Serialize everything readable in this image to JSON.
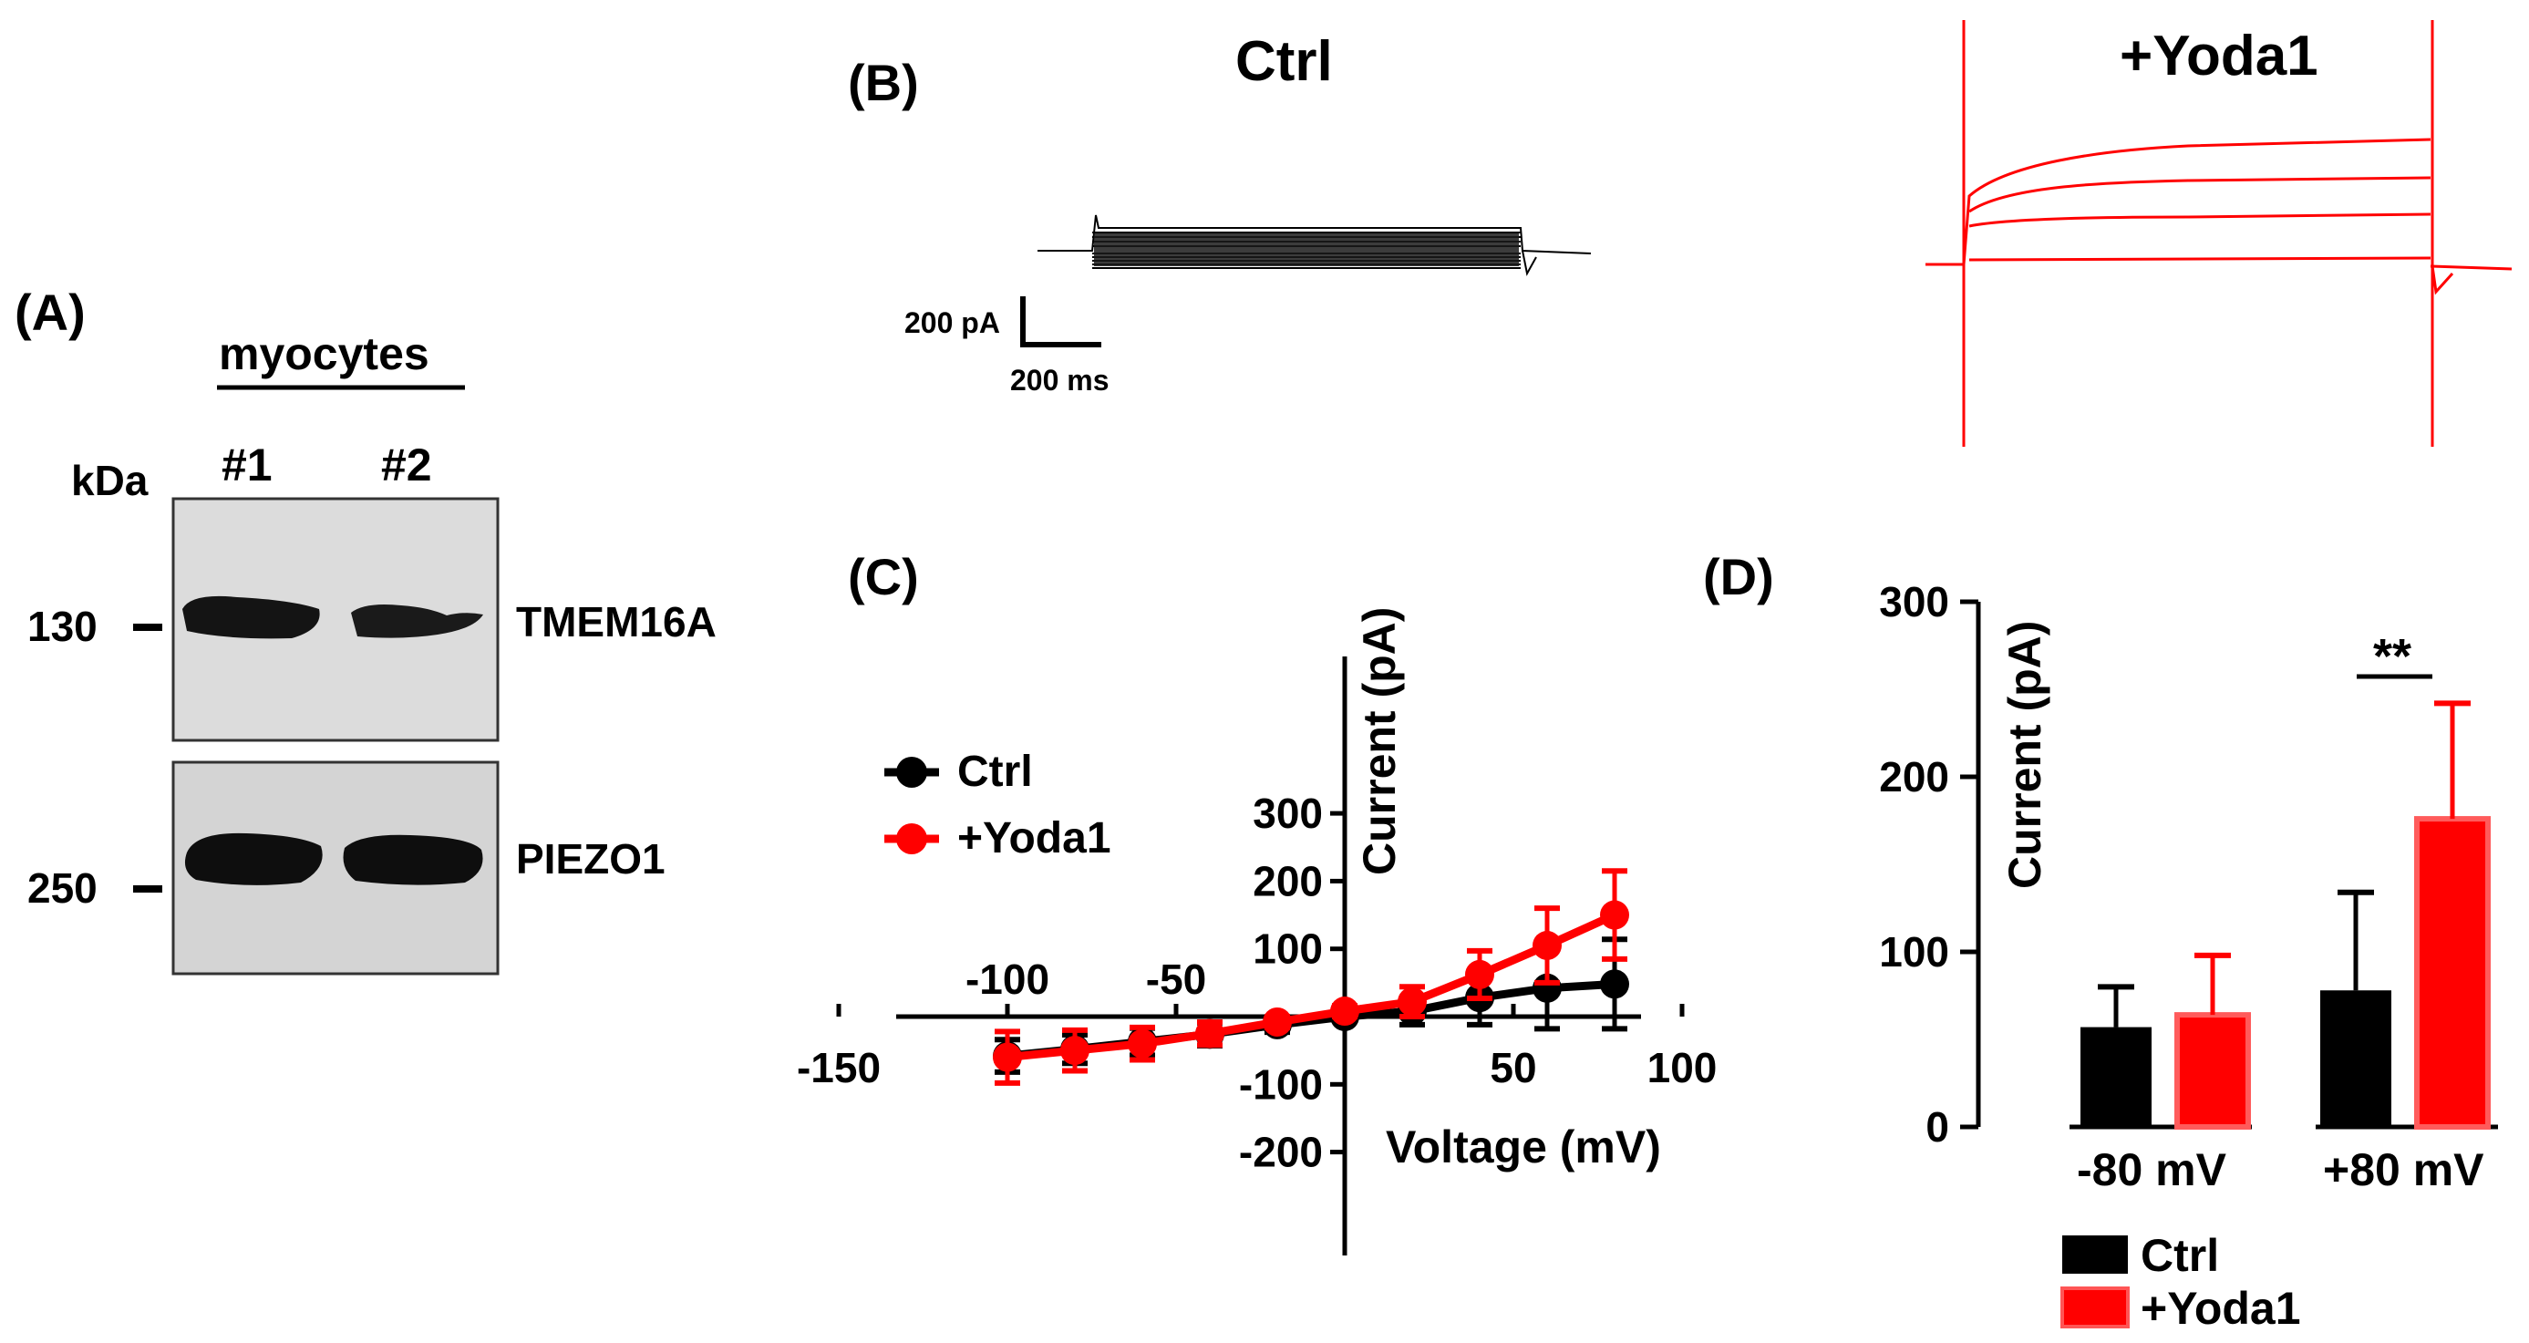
{
  "colors": {
    "ctrl": "#000000",
    "yoda": "#ff0000",
    "blot_bg": "#d9d9d9"
  },
  "panelA": {
    "label": "(A)",
    "group_label": "myocytes",
    "kda_label": "kDa",
    "lanes": [
      "#1",
      "#2"
    ],
    "markers": [
      {
        "mw": "130",
        "protein": "TMEM16A"
      },
      {
        "mw": "250",
        "protein": "PIEZO1"
      }
    ]
  },
  "panelB": {
    "label": "(B)",
    "ctrl_title": "Ctrl",
    "yoda_title": "+Yoda1",
    "scale_current": "200 pA",
    "scale_time": "200 ms"
  },
  "chart_data": [
    {
      "panel": "(C)",
      "type": "line",
      "xlabel": "Voltage (mV)",
      "ylabel": "Current (pA)",
      "xlim": [
        -150,
        100
      ],
      "ylim": [
        -200,
        300
      ],
      "xticks": [
        -150,
        -100,
        -50,
        50,
        100
      ],
      "yticks": [
        -200,
        -100,
        100,
        200,
        300
      ],
      "legend": "left",
      "series": [
        {
          "name": "Ctrl",
          "x": [
            -100,
            -80,
            -60,
            -40,
            -20,
            0,
            20,
            40,
            60,
            80
          ],
          "y": [
            -58,
            -48,
            -37,
            -26,
            -12,
            0,
            8,
            28,
            42,
            48
          ],
          "err": [
            24,
            21,
            20,
            17,
            11,
            6,
            20,
            40,
            60,
            66
          ]
        },
        {
          "name": "+Yoda1",
          "x": [
            -100,
            -80,
            -60,
            -40,
            -20,
            0,
            20,
            40,
            60,
            80
          ],
          "y": [
            -60,
            -50,
            -40,
            -25,
            -8,
            8,
            22,
            62,
            105,
            150
          ],
          "err": [
            38,
            30,
            24,
            17,
            8,
            8,
            22,
            35,
            55,
            65
          ]
        }
      ]
    },
    {
      "panel": "(D)",
      "type": "bar",
      "ylabel": "Current (pA)",
      "ylim": [
        0,
        300
      ],
      "yticks": [
        0,
        100,
        200,
        300
      ],
      "categories": [
        "-80 mV",
        "+80 mV"
      ],
      "significance": {
        "category": "+80 mV",
        "label": "**"
      },
      "legend": "bottom",
      "series": [
        {
          "name": "Ctrl",
          "values": [
            57,
            78
          ],
          "err": [
            23,
            56
          ]
        },
        {
          "name": "+Yoda1",
          "values": [
            64,
            176
          ],
          "err": [
            34,
            66
          ]
        }
      ]
    }
  ]
}
